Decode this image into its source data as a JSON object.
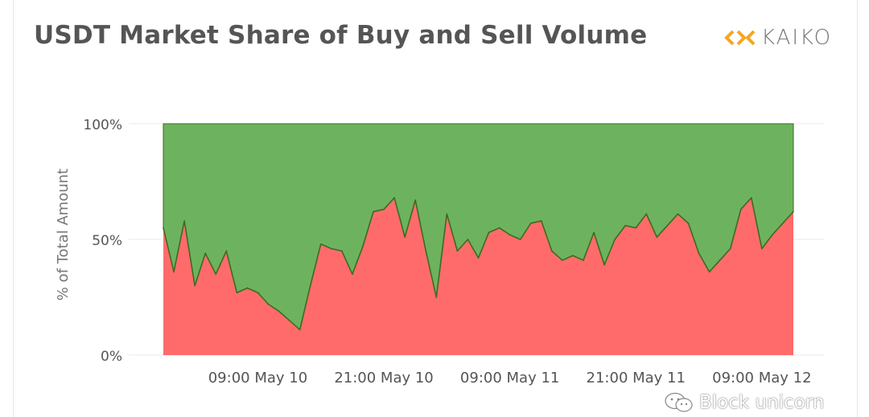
{
  "header": {
    "title": "USDT Market Share of Buy and Sell Volume",
    "brand_name": "KAIKO",
    "brand_icon": "kaiko-logo-icon",
    "brand_color": "#f5a623"
  },
  "watermark": {
    "text": "Block unicorn",
    "icon": "wechat-icon"
  },
  "colors": {
    "buy_fill": "#ff6b6b",
    "sell_fill": "#6db35f",
    "line": "#3d6b1f",
    "grid": "#e9e9e9",
    "axis_text": "#555555"
  },
  "chart_data": {
    "type": "area",
    "stacked": true,
    "ylabel": "% of Total Amount",
    "xlabel": "",
    "ylim": [
      0,
      100
    ],
    "y_ticks": [
      "0%",
      "50%",
      "100%"
    ],
    "x_ticks": [
      "09:00 May 10",
      "21:00 May 10",
      "09:00 May 11",
      "21:00 May 11",
      "09:00 May 12"
    ],
    "grid": true,
    "x": [
      "00:00 May 10",
      "01:00 May 10",
      "02:00 May 10",
      "03:00 May 10",
      "04:00 May 10",
      "05:00 May 10",
      "06:00 May 10",
      "07:00 May 10",
      "08:00 May 10",
      "09:00 May 10",
      "10:00 May 10",
      "11:00 May 10",
      "12:00 May 10",
      "13:00 May 10",
      "14:00 May 10",
      "15:00 May 10",
      "16:00 May 10",
      "17:00 May 10",
      "18:00 May 10",
      "19:00 May 10",
      "20:00 May 10",
      "21:00 May 10",
      "22:00 May 10",
      "23:00 May 10",
      "00:00 May 11",
      "01:00 May 11",
      "02:00 May 11",
      "03:00 May 11",
      "04:00 May 11",
      "05:00 May 11",
      "06:00 May 11",
      "07:00 May 11",
      "08:00 May 11",
      "09:00 May 11",
      "10:00 May 11",
      "11:00 May 11",
      "12:00 May 11",
      "13:00 May 11",
      "14:00 May 11",
      "15:00 May 11",
      "16:00 May 11",
      "17:00 May 11",
      "18:00 May 11",
      "19:00 May 11",
      "20:00 May 11",
      "21:00 May 11",
      "22:00 May 11",
      "23:00 May 11",
      "00:00 May 12",
      "01:00 May 12",
      "02:00 May 12",
      "03:00 May 12",
      "04:00 May 12",
      "05:00 May 12",
      "06:00 May 12",
      "07:00 May 12",
      "08:00 May 12",
      "09:00 May 12",
      "10:00 May 12",
      "11:00 May 12",
      "12:00 May 12"
    ],
    "series": [
      {
        "values": [
          55,
          36,
          58,
          30,
          44,
          35,
          45,
          27,
          29,
          27,
          22,
          19,
          15,
          11,
          30,
          48,
          46,
          45,
          35,
          47,
          62,
          63,
          68,
          51,
          67,
          45,
          25,
          61,
          45,
          50,
          42,
          53,
          55,
          52,
          50,
          57,
          58,
          45,
          41,
          43,
          41,
          53,
          39,
          50,
          56,
          55,
          61,
          51,
          56,
          61,
          57,
          44,
          36,
          41,
          46,
          63,
          68,
          46,
          52,
          57,
          62
        ]
      },
      {
        "values": [
          45,
          64,
          42,
          70,
          56,
          65,
          55,
          73,
          71,
          73,
          78,
          81,
          85,
          89,
          70,
          52,
          54,
          55,
          65,
          53,
          38,
          37,
          32,
          49,
          33,
          55,
          75,
          39,
          55,
          50,
          58,
          47,
          45,
          48,
          50,
          43,
          42,
          55,
          59,
          57,
          59,
          47,
          61,
          50,
          44,
          45,
          39,
          49,
          44,
          39,
          43,
          56,
          64,
          59,
          54,
          37,
          32,
          54,
          48,
          43,
          38
        ]
      }
    ]
  }
}
